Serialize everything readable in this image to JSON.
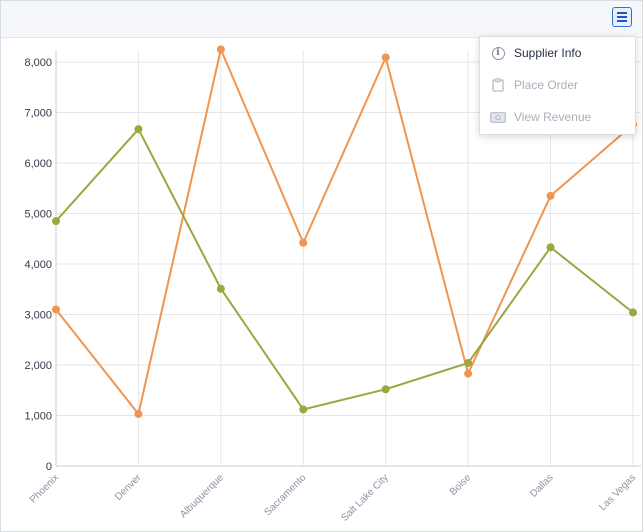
{
  "menu": {
    "items": [
      {
        "label": "Supplier Info",
        "icon": "info-icon",
        "state": "enabled"
      },
      {
        "label": "Place Order",
        "icon": "clipboard-icon",
        "state": "disabled"
      },
      {
        "label": "View Revenue",
        "icon": "money-icon",
        "state": "disabled"
      }
    ]
  },
  "chart_data": {
    "type": "line",
    "categories": [
      "Phoenix",
      "Denver",
      "Albuquerque",
      "Sacramento",
      "Salt Lake City",
      "Boise",
      "Dallas",
      "Las Vegas"
    ],
    "series": [
      {
        "color": "#f0954f",
        "values": [
          3100,
          1030,
          8250,
          4420,
          8090,
          1830,
          5350,
          6760
        ]
      },
      {
        "color": "#9da640",
        "values": [
          4850,
          6670,
          3510,
          1120,
          1520,
          2040,
          4330,
          3040
        ]
      }
    ],
    "ylim": [
      0,
      8000
    ],
    "yticks": [
      0,
      1000,
      2000,
      3000,
      4000,
      5000,
      6000,
      7000,
      8000
    ],
    "ytick_labels": [
      "0",
      "1,000",
      "2,000",
      "3,000",
      "4,000",
      "5,000",
      "6,000",
      "7,000",
      "8,000"
    ],
    "grid": true,
    "title": "",
    "xlabel": "",
    "ylabel": ""
  }
}
